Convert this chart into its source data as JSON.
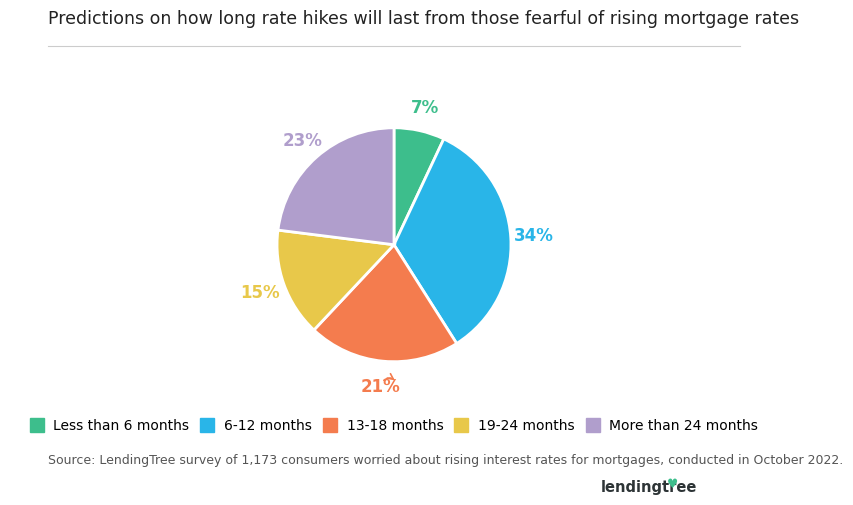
{
  "title": "Predictions on how long rate hikes will last from those fearful of rising mortgage rates",
  "slices": [
    7,
    34,
    21,
    15,
    23
  ],
  "labels": [
    "Less than 6 months",
    "6-12 months",
    "13-18 months",
    "19-24 months",
    "More than 24 months"
  ],
  "pct_labels": [
    "7%",
    "34%",
    "21%",
    "15%",
    "23%"
  ],
  "colors": [
    "#3dbe8c",
    "#29b5e8",
    "#f47c4e",
    "#e8c84a",
    "#b09ecc"
  ],
  "startangle": 90,
  "counterclock": false,
  "source_text": "Source: LendingTree survey of 1,173 consumers worried about rising interest rates for mortgages, conducted in October 2022.",
  "background_color": "#ffffff",
  "title_fontsize": 12.5,
  "legend_fontsize": 10,
  "pct_fontsize": 12,
  "source_fontsize": 9,
  "label_radii": [
    1.2,
    1.2,
    1.22,
    1.22,
    1.18
  ],
  "arrow_slice_idx": 2
}
